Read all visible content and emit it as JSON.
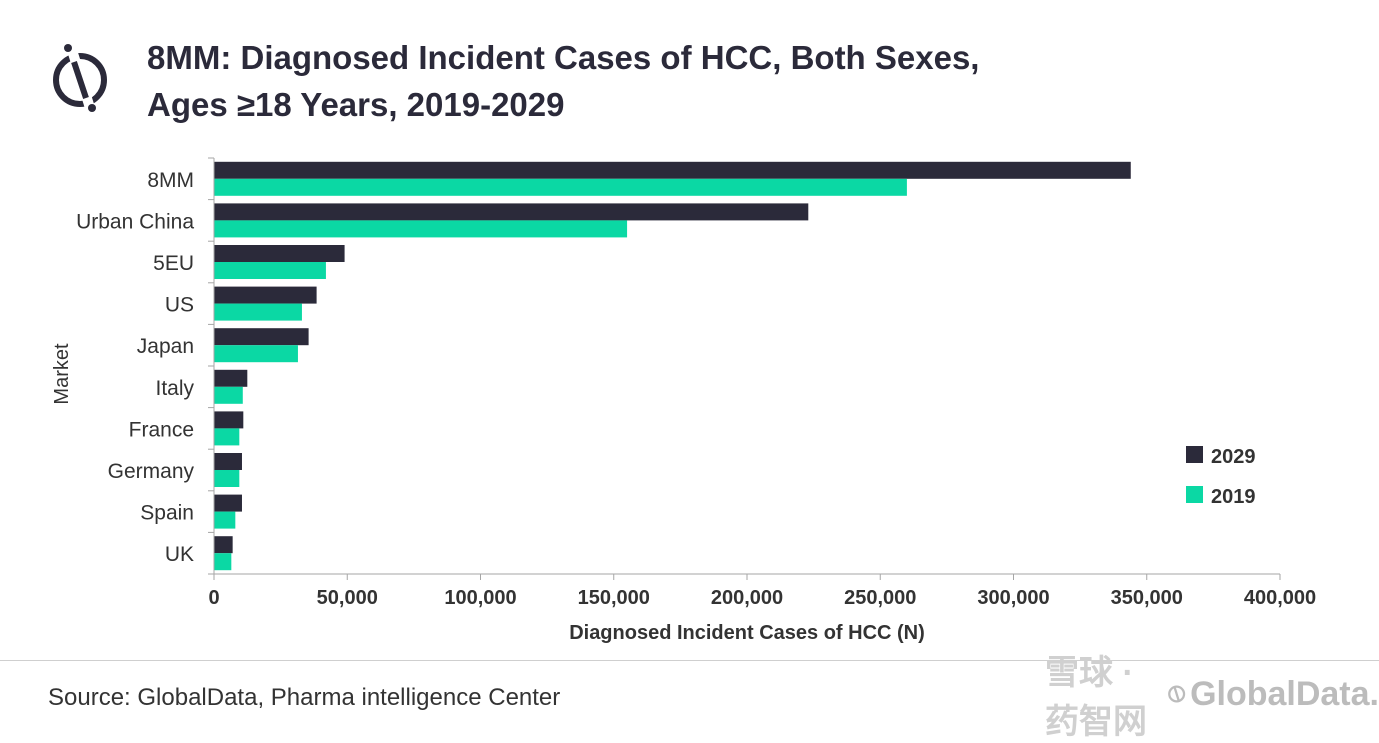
{
  "header": {
    "title_line1": "8MM: Diagnosed Incident Cases of HCC, Both Sexes,",
    "title_line2": "Ages ≥18 Years, 2019-2029"
  },
  "footer": {
    "source": "Source: GlobalData, Pharma intelligence Center",
    "watermark": "雪球 · 药智网",
    "brand": "GlobalData."
  },
  "colors": {
    "series_2029": "#2b2a3a",
    "series_2019": "#0bd8a4",
    "axis": "#a6a6a6",
    "text": "#333333"
  },
  "chart_data": {
    "type": "bar",
    "orientation": "horizontal",
    "title": "8MM: Diagnosed Incident Cases of HCC, Both Sexes, Ages ≥18 Years, 2019-2029",
    "xlabel": "Diagnosed Incident Cases of HCC (N)",
    "ylabel": "Market",
    "categories": [
      "8MM",
      "Urban China",
      "5EU",
      "US",
      "Japan",
      "Italy",
      "France",
      "Germany",
      "Spain",
      "UK"
    ],
    "series": [
      {
        "name": "2029",
        "values": [
          344000,
          223000,
          49000,
          38500,
          35500,
          12500,
          11000,
          10500,
          10500,
          7000
        ]
      },
      {
        "name": "2019",
        "values": [
          260000,
          155000,
          42000,
          33000,
          31500,
          10800,
          9500,
          9500,
          8000,
          6500
        ]
      }
    ],
    "xlim": [
      0,
      400000
    ],
    "xticks": [
      0,
      50000,
      100000,
      150000,
      200000,
      250000,
      300000,
      350000,
      400000
    ],
    "xtick_labels": [
      "0",
      "50,000",
      "100,000",
      "150,000",
      "200,000",
      "250,000",
      "300,000",
      "350,000",
      "400,000"
    ],
    "grid": false,
    "legend_position": "right"
  }
}
